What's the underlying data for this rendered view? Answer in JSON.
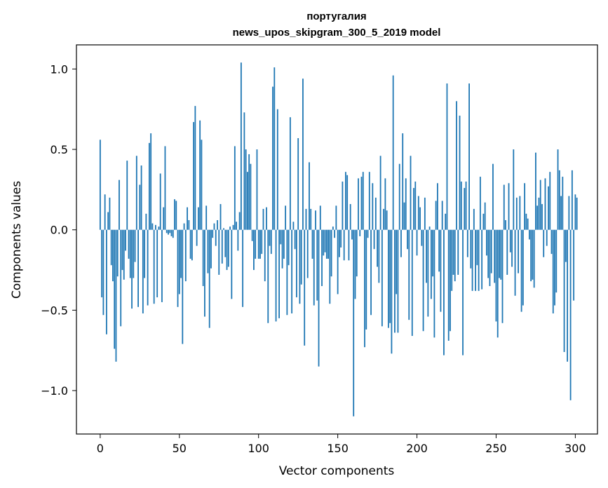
{
  "chart_data": {
    "type": "bar",
    "title": "португалия",
    "subtitle": "news_upos_skipgram_300_5_2019 model",
    "xlabel": "Vector components",
    "ylabel": "Components values",
    "xlim": [
      -15,
      314
    ],
    "ylim": [
      -1.27,
      1.15
    ],
    "xticks": [
      0,
      50,
      100,
      150,
      200,
      250,
      300
    ],
    "xtick_labels": [
      "0",
      "50",
      "100",
      "150",
      "200",
      "250",
      "300"
    ],
    "yticks": [
      -1.0,
      -0.5,
      0.0,
      0.5,
      1.0
    ],
    "ytick_labels": [
      "−1.0",
      "−0.5",
      "0.0",
      "0.5",
      "1.0"
    ],
    "grid": false,
    "bar_color": "#1f77b4",
    "values": [
      0.56,
      -0.42,
      -0.53,
      0.22,
      -0.65,
      0.11,
      0.2,
      -0.22,
      -0.32,
      -0.74,
      -0.82,
      -0.29,
      0.31,
      -0.6,
      -0.25,
      -0.31,
      -0.13,
      0.43,
      -0.18,
      -0.3,
      -0.49,
      -0.3,
      -0.2,
      0.46,
      -0.48,
      0.28,
      0.4,
      -0.52,
      -0.3,
      0.1,
      -0.47,
      0.54,
      0.6,
      0.04,
      -0.46,
      0.03,
      -0.42,
      0.02,
      0.35,
      -0.45,
      0.14,
      0.52,
      -0.02,
      -0.03,
      -0.02,
      -0.04,
      -0.05,
      0.19,
      0.18,
      -0.48,
      -0.4,
      -0.3,
      -0.71,
      0.04,
      -0.32,
      0.14,
      0.06,
      -0.18,
      -0.19,
      0.67,
      0.77,
      -0.1,
      0.14,
      0.68,
      0.56,
      -0.35,
      -0.54,
      0.15,
      -0.27,
      -0.61,
      -0.24,
      -0.05,
      0.04,
      -0.1,
      0.06,
      -0.28,
      0.16,
      -0.21,
      0.01,
      -0.17,
      -0.25,
      -0.23,
      0.02,
      -0.43,
      0.03,
      0.52,
      0.05,
      -0.13,
      0.11,
      1.04,
      -0.48,
      0.73,
      0.5,
      0.36,
      0.47,
      0.41,
      -0.07,
      -0.25,
      -0.18,
      0.5,
      -0.18,
      -0.18,
      -0.15,
      0.13,
      -0.32,
      0.14,
      -0.58,
      -0.1,
      -0.15,
      0.89,
      1.01,
      -0.57,
      0.75,
      -0.55,
      -0.09,
      -0.24,
      -0.18,
      0.15,
      -0.53,
      -0.22,
      0.7,
      -0.52,
      0.05,
      -0.12,
      -0.42,
      0.57,
      -0.46,
      -0.34,
      0.94,
      -0.72,
      0.13,
      -0.3,
      0.42,
      0.13,
      -0.18,
      -0.47,
      0.12,
      -0.44,
      -0.85,
      0.15,
      -0.35,
      -0.16,
      -0.14,
      -0.18,
      -0.18,
      -0.46,
      -0.29,
      0.02,
      -0.05,
      0.15,
      -0.4,
      -0.17,
      -0.11,
      0.3,
      -0.19,
      0.36,
      0.34,
      -0.19,
      0.16,
      -0.06,
      -1.16,
      -0.43,
      -0.29,
      0.32,
      -0.04,
      0.33,
      0.36,
      -0.73,
      -0.62,
      -0.05,
      0.36,
      -0.53,
      0.29,
      -0.12,
      0.2,
      -0.23,
      -0.33,
      0.46,
      -0.6,
      0.13,
      0.32,
      0.12,
      -0.61,
      -0.58,
      -0.77,
      0.96,
      -0.64,
      -0.4,
      -0.64,
      0.41,
      -0.17,
      0.6,
      0.17,
      0.32,
      -0.12,
      -0.56,
      0.46,
      -0.66,
      0.26,
      0.3,
      -0.16,
      0.21,
      0.14,
      -0.1,
      -0.63,
      0.2,
      -0.33,
      -0.54,
      0.02,
      -0.43,
      -0.29,
      -0.67,
      0.18,
      0.29,
      -0.26,
      -0.51,
      0.18,
      -0.78,
      0.1,
      0.91,
      -0.69,
      -0.63,
      -0.38,
      -0.28,
      -0.32,
      0.8,
      -0.28,
      0.71,
      0.3,
      -0.78,
      0.26,
      0.3,
      -0.17,
      0.91,
      -0.24,
      -0.38,
      0.13,
      -0.38,
      -0.22,
      -0.38,
      0.33,
      -0.37,
      0.1,
      0.17,
      -0.16,
      -0.3,
      -0.35,
      -0.27,
      0.41,
      -0.33,
      -0.57,
      -0.67,
      -0.3,
      -0.31,
      -0.58,
      0.28,
      0.06,
      -0.28,
      0.29,
      -0.14,
      -0.23,
      0.5,
      -0.41,
      0.2,
      -0.27,
      0.21,
      -0.51,
      -0.47,
      0.29,
      0.1,
      0.07,
      -0.06,
      -0.32,
      -0.31,
      -0.36,
      0.48,
      0.15,
      0.2,
      0.31,
      0.16,
      -0.17,
      0.32,
      -0.1,
      0.27,
      0.36,
      -0.15,
      -0.52,
      -0.47,
      -0.39,
      0.5,
      0.37,
      0.21,
      0.33,
      -0.76,
      -0.2,
      -0.82,
      0.21,
      -1.06,
      0.37,
      -0.44,
      0.22,
      0.2
    ]
  }
}
